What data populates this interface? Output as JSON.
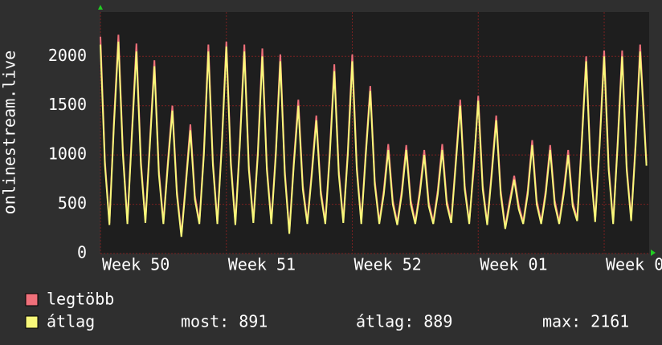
{
  "chart_data": {
    "type": "line",
    "y_label": "onlinestream.live",
    "xlim": [
      0,
      30.5
    ],
    "xticks": [
      {
        "value": 0,
        "label": "Week 50"
      },
      {
        "value": 7,
        "label": "Week 51"
      },
      {
        "value": 14,
        "label": "Week 52"
      },
      {
        "value": 21,
        "label": "Week 01"
      },
      {
        "value": 28,
        "label": "Week 0"
      }
    ],
    "ylim": [
      0,
      2450
    ],
    "yticks": [
      0,
      500,
      1000,
      1500,
      2000
    ],
    "grid": true,
    "x": [
      0,
      0.25,
      0.5,
      0.75,
      1,
      1.25,
      1.5,
      1.75,
      2,
      2.25,
      2.5,
      2.75,
      3,
      3.25,
      3.5,
      3.75,
      4,
      4.25,
      4.5,
      4.75,
      5,
      5.25,
      5.5,
      5.75,
      6,
      6.25,
      6.5,
      6.75,
      7,
      7.25,
      7.5,
      7.75,
      8,
      8.25,
      8.5,
      8.75,
      9,
      9.25,
      9.5,
      9.75,
      10,
      10.25,
      10.5,
      10.75,
      11,
      11.25,
      11.5,
      11.75,
      12,
      12.25,
      12.5,
      12.75,
      13,
      13.25,
      13.5,
      13.75,
      14,
      14.25,
      14.5,
      14.75,
      15,
      15.25,
      15.5,
      15.75,
      16,
      16.25,
      16.5,
      16.75,
      17,
      17.25,
      17.5,
      17.75,
      18,
      18.25,
      18.5,
      18.75,
      19,
      19.25,
      19.5,
      19.75,
      20,
      20.25,
      20.5,
      20.75,
      21,
      21.25,
      21.5,
      21.75,
      22,
      22.25,
      22.5,
      22.75,
      23,
      23.25,
      23.5,
      23.75,
      24,
      24.25,
      24.5,
      24.75,
      25,
      25.25,
      25.5,
      25.75,
      26,
      26.25,
      26.5,
      26.75,
      27,
      27.25,
      27.5,
      27.75,
      28,
      28.25,
      28.5,
      28.75,
      29,
      29.25,
      29.5,
      29.75,
      30,
      30.35
    ],
    "series": [
      {
        "name": "legtöbb",
        "color": "#f0707a",
        "values": [
          2200,
          940,
          310,
          1340,
          2220,
          1040,
          320,
          1240,
          2130,
          940,
          330,
          1140,
          1960,
          840,
          320,
          940,
          1500,
          640,
          190,
          740,
          1310,
          590,
          320,
          1040,
          2120,
          940,
          320,
          1140,
          2150,
          940,
          310,
          1140,
          2120,
          890,
          330,
          1040,
          2080,
          890,
          320,
          1040,
          2020,
          840,
          220,
          940,
          1560,
          690,
          320,
          840,
          1400,
          640,
          320,
          1040,
          1920,
          840,
          330,
          1040,
          2020,
          890,
          320,
          1040,
          1700,
          740,
          320,
          640,
          1110,
          540,
          310,
          640,
          1100,
          540,
          320,
          640,
          1050,
          520,
          320,
          640,
          1110,
          540,
          330,
          940,
          1560,
          690,
          320,
          840,
          1600,
          690,
          310,
          840,
          1400,
          640,
          270,
          540,
          790,
          490,
          320,
          640,
          1150,
          540,
          320,
          640,
          1100,
          540,
          320,
          640,
          1050,
          520,
          350,
          1140,
          2000,
          890,
          340,
          1140,
          2060,
          890,
          320,
          1140,
          2060,
          890,
          350,
          1140,
          2120,
          920
        ]
      },
      {
        "name": "átlag",
        "color": "#f8f87a",
        "values": [
          2120,
          900,
          290,
          1300,
          2150,
          1000,
          300,
          1200,
          2050,
          900,
          310,
          1100,
          1900,
          800,
          300,
          900,
          1450,
          600,
          170,
          700,
          1250,
          550,
          300,
          1000,
          2050,
          900,
          300,
          1100,
          2100,
          900,
          290,
          1100,
          2050,
          850,
          310,
          1000,
          2000,
          850,
          300,
          1000,
          1950,
          800,
          200,
          900,
          1500,
          650,
          300,
          800,
          1350,
          600,
          300,
          1000,
          1850,
          800,
          310,
          1000,
          1950,
          850,
          300,
          1000,
          1650,
          700,
          300,
          600,
          1050,
          500,
          290,
          600,
          1050,
          500,
          300,
          600,
          1000,
          480,
          300,
          600,
          1050,
          500,
          310,
          900,
          1500,
          650,
          300,
          900,
          1550,
          650,
          290,
          800,
          1350,
          600,
          250,
          500,
          750,
          450,
          300,
          600,
          1100,
          500,
          300,
          600,
          1050,
          500,
          300,
          600,
          1000,
          480,
          330,
          1100,
          1950,
          850,
          320,
          1100,
          2000,
          850,
          300,
          1100,
          2000,
          850,
          330,
          1100,
          2050,
          891
        ]
      }
    ],
    "stats": [
      {
        "label": "most:",
        "value": 891
      },
      {
        "label": "átlag:",
        "value": 889
      },
      {
        "label": "max:",
        "value": 2161
      }
    ]
  }
}
